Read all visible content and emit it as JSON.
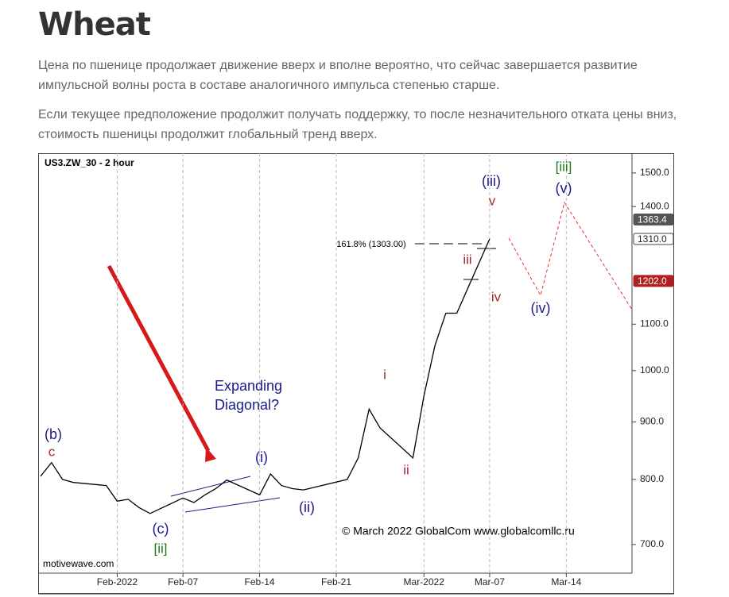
{
  "title": "Wheat",
  "paragraphs": [
    "Цена по пшенице продолжает движение вверх и вполне вероятно, что сейчас завершается развитие импульсной волны роста в составе аналогичного импульса степенью старше.",
    "Если текущее предположение продолжит получать поддержку, то после незначительного отката цены вниз, стоимость пшеницы продолжит глобальный тренд вверх."
  ],
  "chart_data": {
    "type": "line",
    "title": "US3.ZW_30 - 2 hour",
    "log_scale": true,
    "grid": true,
    "x": [
      "2022-01-25",
      "2022-01-26",
      "2022-01-27",
      "2022-01-28",
      "2022-01-31",
      "2022-02-01",
      "2022-02-02",
      "2022-02-03",
      "2022-02-04",
      "2022-02-07",
      "2022-02-08",
      "2022-02-09",
      "2022-02-10",
      "2022-02-11",
      "2022-02-14",
      "2022-02-15",
      "2022-02-16",
      "2022-02-17",
      "2022-02-18",
      "2022-02-22",
      "2022-02-23",
      "2022-02-24",
      "2022-02-25",
      "2022-02-28",
      "2022-03-01",
      "2022-03-02",
      "2022-03-03",
      "2022-03-04",
      "2022-03-07"
    ],
    "series": [
      {
        "name": "US3.ZW_30",
        "color": "#000000",
        "values": [
          805,
          828,
          800,
          795,
          790,
          765,
          768,
          755,
          746,
          770,
          763,
          775,
          785,
          799,
          775,
          809,
          790,
          785,
          783,
          800,
          836,
          924,
          889,
          836,
          949,
          1052,
          1125,
          1125,
          1310
        ]
      }
    ],
    "xlim": [
      "2022-01-25",
      "2022-03-20"
    ],
    "xticks": [
      {
        "value": "2022-02-01",
        "label": "Feb-2022"
      },
      {
        "value": "2022-02-07",
        "label": "Feb-07"
      },
      {
        "value": "2022-02-14",
        "label": "Feb-14"
      },
      {
        "value": "2022-02-21",
        "label": "Feb-21"
      },
      {
        "value": "2022-03-01",
        "label": "Mar-2022"
      },
      {
        "value": "2022-03-07",
        "label": "Mar-07"
      },
      {
        "value": "2022-03-14",
        "label": "Mar-14"
      }
    ],
    "ylim": [
      660,
      1562
    ],
    "yticks": [
      {
        "value": 700,
        "label": "700.0"
      },
      {
        "value": 800,
        "label": "800.0"
      },
      {
        "value": 900,
        "label": "900.0"
      },
      {
        "value": 1000,
        "label": "1000.0"
      },
      {
        "value": 1100,
        "label": "1100.0"
      },
      {
        "value": 1400,
        "label": "1400.0"
      },
      {
        "value": 1500,
        "label": "1500.0"
      }
    ],
    "price_labels": [
      {
        "value": 1363.4,
        "label": "1363.4"
      },
      {
        "value": 1310,
        "label": "1310.0"
      },
      {
        "value": 1202,
        "label": "1202.0"
      }
    ],
    "annotations": [
      "(b)",
      "c",
      "(c)",
      "[ii]",
      "Expanding",
      "Diagonal?",
      "(i)",
      "(ii)",
      "i",
      "ii",
      "iii",
      "iv",
      "v",
      "(iii)",
      "(iv)",
      "(v)",
      "[iii]",
      "161.8% (1303.00)"
    ],
    "watermark": "motivewave.com",
    "copyright": "© March 2022 GlobalCom www.globalcomllc.ru"
  }
}
